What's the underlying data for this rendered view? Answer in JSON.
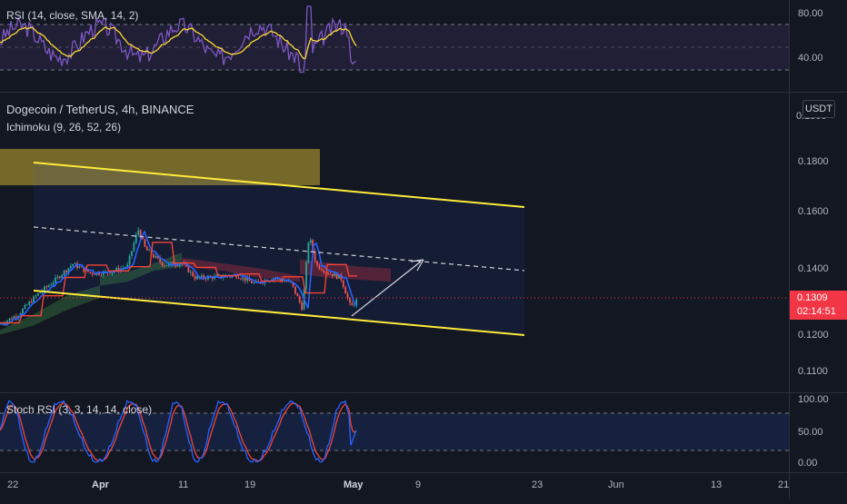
{
  "panes": {
    "rsi": {
      "label": "RSI (14, close, SMA, 14, 2)",
      "ticks": [
        "80.00",
        "40.00"
      ]
    },
    "main": {
      "title": "Dogecoin / TetherUS, 4h, BINANCE",
      "indicator": "Ichimoku (9, 26, 52, 26)",
      "currency": "USDT",
      "ticks": [
        "0.1800",
        "0.1600",
        "0.1400",
        "0.1200",
        "0.1100"
      ],
      "top_tick_partial": "0.1800",
      "price_badge": "0.1309",
      "countdown": "02:14:51"
    },
    "stoch": {
      "label": "Stoch RSI (3, 3, 14, 14, close)",
      "ticks": [
        "100.00",
        "50.00",
        "0.00"
      ]
    }
  },
  "time_axis": {
    "labels": [
      "22",
      "Apr",
      "11",
      "19",
      "May",
      "9",
      "23",
      "Jun",
      "13",
      "21"
    ]
  },
  "colors": {
    "background": "#131722",
    "channel": "#ffeb3b",
    "price_badge": "#f23645",
    "rsi_line": "#7e57c2",
    "rsi_ma": "#fdd835",
    "stoch_k": "#2962ff",
    "stoch_d": "#f44336",
    "conversion_line": "#2962ff",
    "base_line": "#f44336"
  },
  "chart_data": [
    {
      "type": "line",
      "title": "RSI (14, close, SMA, 14, 2)",
      "ylim": [
        27,
        93
      ],
      "bands": [
        70,
        50,
        30
      ],
      "series": [
        {
          "name": "RSI",
          "values": []
        },
        {
          "name": "SMA",
          "values": []
        }
      ]
    },
    {
      "type": "line",
      "title": "Dogecoin / TetherUS, 4h, BINANCE",
      "ylim": [
        0.105,
        0.195
      ],
      "y_scale": "log",
      "last_price": 0.1309,
      "x_ticks": [
        "22",
        "Apr",
        "11",
        "19",
        "May",
        "9",
        "23",
        "Jun",
        "13",
        "21"
      ],
      "channel": {
        "upper": [
          [
            0.18
          ],
          [
            0.162
          ]
        ],
        "lower": [
          [
            0.1305
          ],
          [
            0.12
          ]
        ],
        "median": [
          [
            0.154
          ],
          [
            0.1395
          ]
        ]
      },
      "supply_zone": [
        0.17,
        0.1865
      ],
      "projection": {
        "from": 0.1235,
        "to": 0.1435
      }
    },
    {
      "type": "line",
      "title": "Stoch RSI (3, 3, 14, 14, close)",
      "ylim": [
        -5,
        105
      ],
      "bands": [
        80,
        20
      ],
      "series": [
        {
          "name": "K",
          "values": []
        },
        {
          "name": "D",
          "values": []
        }
      ]
    }
  ]
}
